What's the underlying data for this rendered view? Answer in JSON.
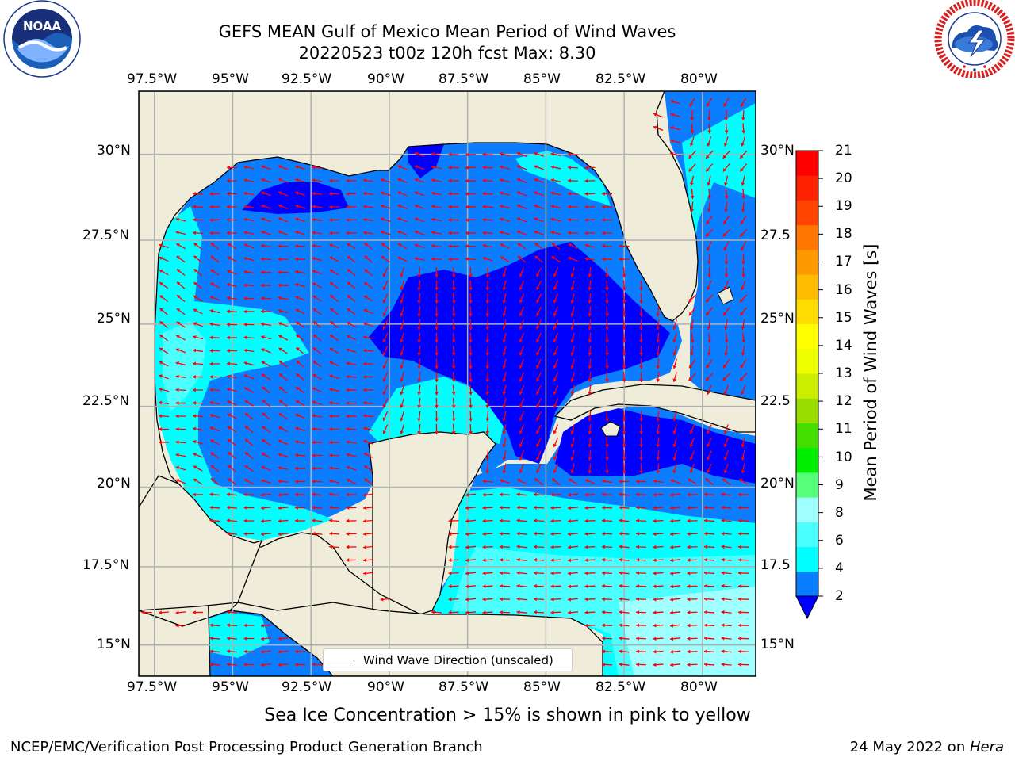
{
  "title": {
    "line1": "GEFS MEAN Gulf of Mexico Mean Period of Wind Waves",
    "line2": "20220523 t00z 120h fcst   Max: 8.30"
  },
  "logos": {
    "noaa": {
      "text": "NOAA",
      "ring_text": "NATIONAL OCEANIC AND ATMOSPHERIC ADMINISTRATION · U.S. DEPARTMENT OF COMMERCE"
    },
    "nws": {
      "ring_text": "NATIONAL WEATHER SERVICE"
    }
  },
  "map": {
    "lon_labels": [
      "97.5°W",
      "95°W",
      "92.5°W",
      "90°W",
      "87.5°W",
      "85°W",
      "82.5°W",
      "80°W"
    ],
    "lat_labels_left": [
      "30°N",
      "27.5°N",
      "25°N",
      "22.5°N",
      "20°N",
      "17.5°N",
      "15°N"
    ],
    "lat_labels_right": [
      "30°N",
      "27.5",
      "25°N",
      "22.5",
      "20°N",
      "17.5",
      "15°N"
    ],
    "lon_range": [
      -98.0,
      -78.3
    ],
    "lat_range": [
      14.0,
      31.8
    ],
    "legend_label": "Wind Wave Direction (unscaled)",
    "colors": {
      "land": "#efedd9",
      "level_0_2": "#0000ff",
      "level_2_4": "#0a7eff",
      "level_4_6": "#00ffff",
      "level_6_8": "#4bffff",
      "level_8_9": "#a0ffff",
      "arrow": "#ff0000",
      "grid": "#b0b0b0"
    }
  },
  "colorbar": {
    "label": "Mean Period of Wind Waves [s]",
    "ticks": [
      "21",
      "20",
      "19",
      "18",
      "17",
      "16",
      "15",
      "14",
      "13",
      "12",
      "11",
      "10",
      "9",
      "8",
      "6",
      "4",
      "2"
    ],
    "colors_bottom_to_top": [
      "#0a7eff",
      "#00ffff",
      "#4bffff",
      "#a0ffff",
      "#55ff77",
      "#00ee00",
      "#44dd00",
      "#99dd00",
      "#ccee00",
      "#eeff00",
      "#ffff00",
      "#ffdd00",
      "#ffbb00",
      "#ff9900",
      "#ff7700",
      "#ff4400",
      "#ff2200",
      "#ff0000"
    ],
    "extend_color": "#0000ff"
  },
  "subtitle": "Sea Ice Concentration > 15% is shown in pink to yellow",
  "footer": {
    "left": "NCEP/EMC/Verification Post Processing Product Generation Branch",
    "right_date": "24 May 2022 on ",
    "right_machine": "Hera"
  }
}
